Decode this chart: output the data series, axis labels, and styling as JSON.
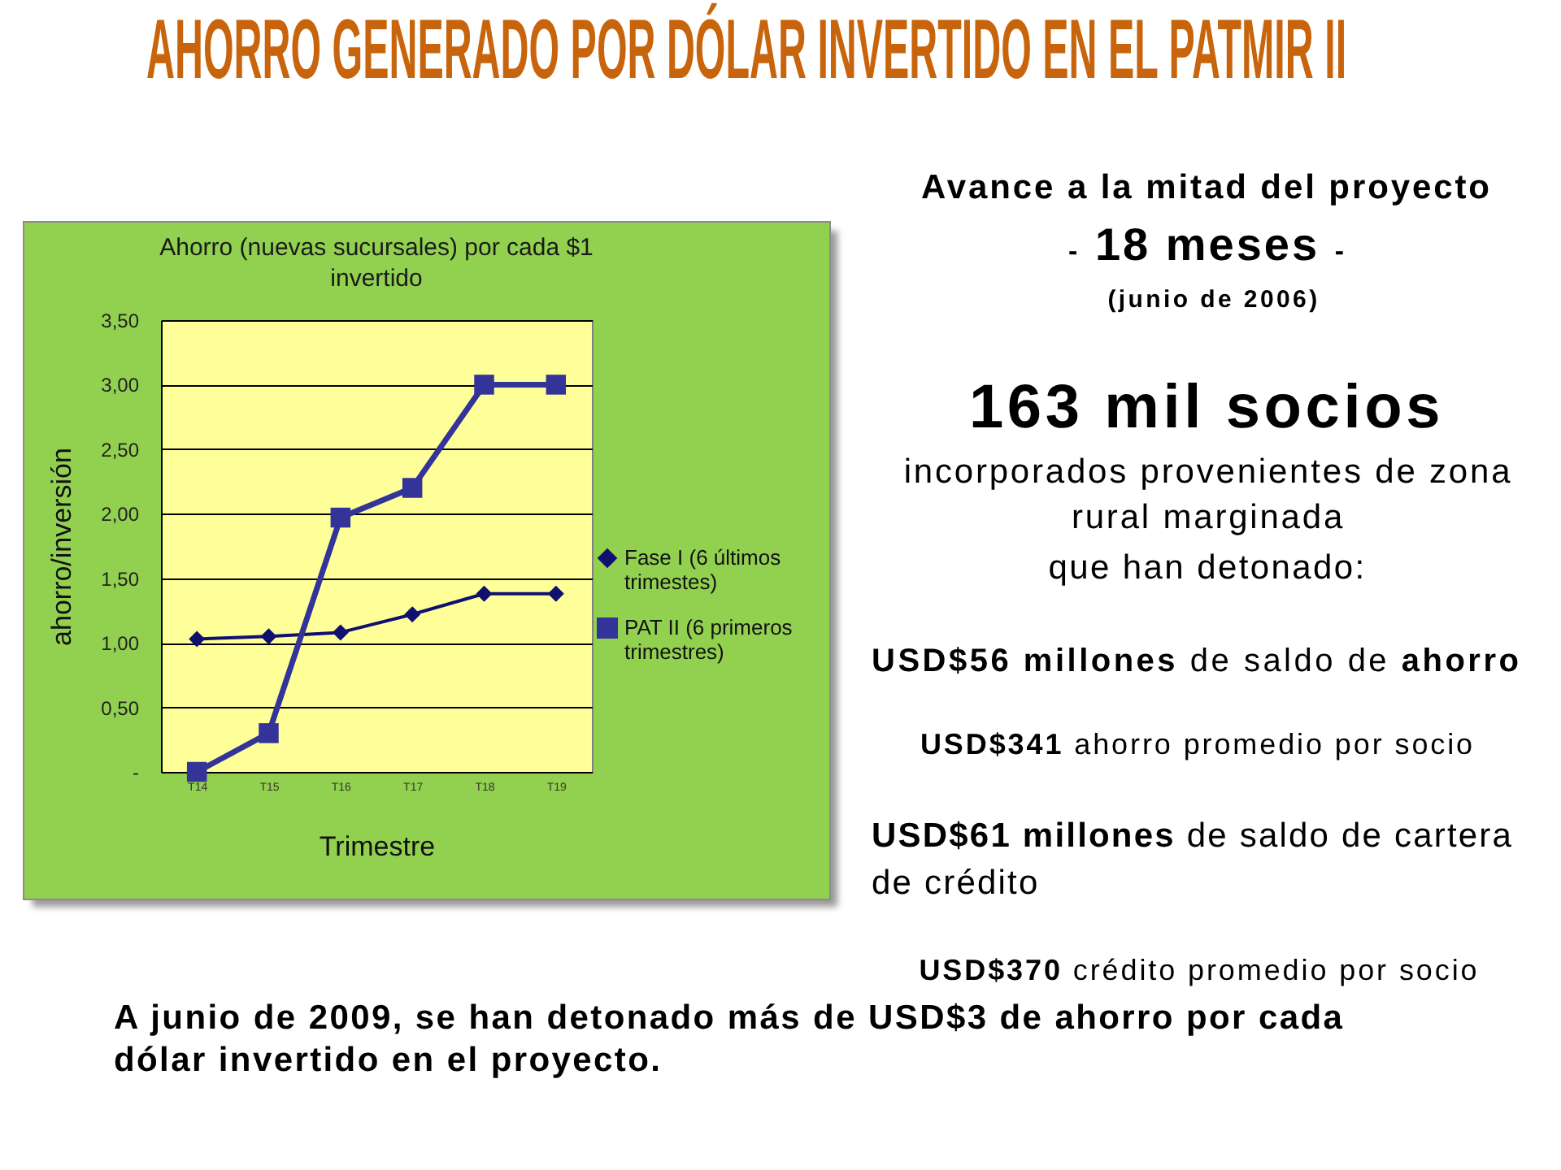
{
  "chart_data": {
    "type": "line",
    "title": "AHORRO GENERADO POR DÓLAR INVERTIDO EN EL PATMIR II",
    "subtitle": "Ahorro (nuevas sucursales) por cada $1 invertido",
    "xlabel": "Trimestre",
    "ylabel": "ahorro/inversión",
    "categories": [
      "T14",
      "T15",
      "T16",
      "T17",
      "T18",
      "T19"
    ],
    "series": [
      {
        "name": "Fase I (6 últimos trimestes)",
        "color": "#101070",
        "marker": "diamond",
        "values": [
          1.03,
          1.05,
          1.08,
          1.22,
          1.38,
          1.38
        ]
      },
      {
        "name": "PAT II (6 primeros trimestres)",
        "color": "#333399",
        "marker": "square",
        "values": [
          0,
          0.3,
          1.97,
          2.2,
          3.0,
          3.0
        ]
      }
    ],
    "ylim": [
      0,
      3.5
    ],
    "yticks": [
      {
        "value": 0,
        "label": "-"
      },
      {
        "value": 0.5,
        "label": "0,50"
      },
      {
        "value": 1,
        "label": "1,00"
      },
      {
        "value": 1.5,
        "label": "1,50"
      },
      {
        "value": 2,
        "label": "2,00"
      },
      {
        "value": 2.5,
        "label": "2,50"
      },
      {
        "value": 3,
        "label": "3,00"
      },
      {
        "value": 3.5,
        "label": "3,50"
      }
    ],
    "grid": "y",
    "legend": "right",
    "line_style": "solid",
    "annotations": [
      "Avance a la mitad del proyecto",
      "- 18 meses -",
      "(junio de 2006)",
      "163 mil socios",
      "incorporados provenientes de zona rural marginada",
      "que han detonado:",
      "USD$56 millones de saldo de ahorro",
      "USD$341 ahorro promedio por socio",
      "USD$61 millones de saldo de cartera de crédito",
      "USD$370 crédito promedio por socio",
      "A junio de 2009, se han detonado más de USD$3 de ahorro por cada dólar invertido en el proyecto."
    ]
  }
}
